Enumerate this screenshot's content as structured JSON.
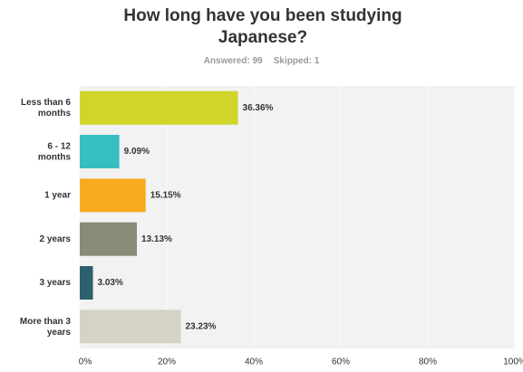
{
  "chart_data": {
    "type": "bar",
    "orientation": "horizontal",
    "title": "How long have you been studying Japanese?",
    "answered": "Answered: 99",
    "skipped": "Skipped: 1",
    "categories": [
      "Less than 6 months",
      "6 - 12 months",
      "1 year",
      "2 years",
      "3 years",
      "More than 3 years"
    ],
    "values": [
      36.36,
      9.09,
      15.15,
      13.13,
      3.03,
      23.23
    ],
    "value_labels": [
      "36.36%",
      "9.09%",
      "15.15%",
      "13.13%",
      "3.03%",
      "23.23%"
    ],
    "colors": [
      "#d0d52a",
      "#37bec1",
      "#f8ab20",
      "#8a8a78",
      "#2d5f6f",
      "#d4d3c4"
    ],
    "xlim": [
      0,
      100
    ],
    "xticks": [
      {
        "value": 0,
        "label": "0%"
      },
      {
        "value": 20,
        "label": "20%"
      },
      {
        "value": 40,
        "label": "40%"
      },
      {
        "value": 60,
        "label": "60%"
      },
      {
        "value": 80,
        "label": "80%"
      },
      {
        "value": 100,
        "label": "100%"
      }
    ],
    "grid": true
  }
}
